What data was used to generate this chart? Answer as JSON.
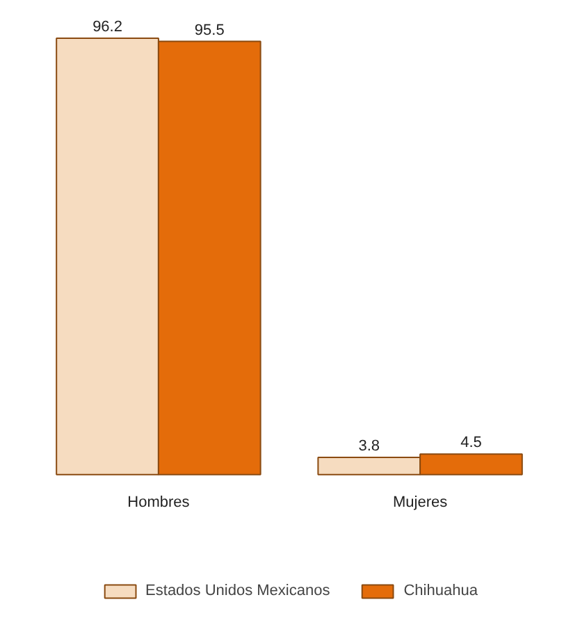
{
  "chart_data": {
    "type": "bar",
    "categories": [
      "Hombres",
      "Mujeres"
    ],
    "series": [
      {
        "name": "Estados Unidos Mexicanos",
        "color": "#f6dcc0",
        "values": [
          96.2,
          3.8
        ]
      },
      {
        "name": "Chihuahua",
        "color": "#e46c0a",
        "values": [
          95.5,
          4.5
        ]
      }
    ],
    "data_labels": true,
    "legend": "bottom"
  }
}
